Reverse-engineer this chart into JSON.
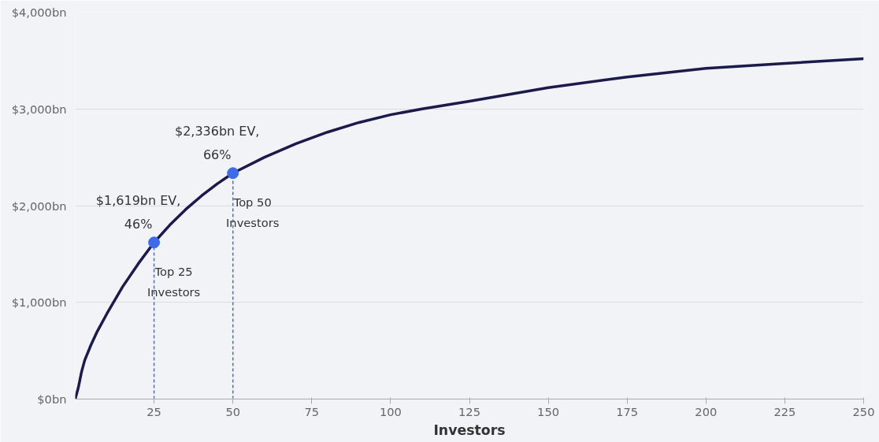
{
  "chart_data": {
    "type": "line",
    "xlabel": "Investors",
    "xlim": [
      0,
      250
    ],
    "xticks": [
      25,
      50,
      75,
      100,
      125,
      150,
      175,
      200,
      225,
      250
    ],
    "ylim": [
      0,
      4000
    ],
    "yticks": [
      {
        "value": 0,
        "label": "$0bn"
      },
      {
        "value": 1000,
        "label": "$1,000bn"
      },
      {
        "value": 2000,
        "label": "$2,000bn"
      },
      {
        "value": 3000,
        "label": "$3,000bn"
      },
      {
        "value": 4000,
        "label": "$4,000bn"
      }
    ],
    "grid": "y",
    "line_style": "solid",
    "series": [
      {
        "color": "#1b1a4b",
        "x": [
          0,
          1,
          2,
          3,
          5,
          7,
          10,
          15,
          20,
          25,
          30,
          35,
          40,
          45,
          50,
          60,
          70,
          80,
          90,
          100,
          110,
          125,
          150,
          175,
          200,
          225,
          250
        ],
        "values": [
          0,
          120,
          280,
          400,
          560,
          700,
          880,
          1160,
          1400,
          1619,
          1800,
          1960,
          2100,
          2225,
          2336,
          2500,
          2640,
          2760,
          2860,
          2940,
          3000,
          3080,
          3220,
          3330,
          3420,
          3470,
          3520
        ]
      },
      {
        "type": "scatter",
        "color": "#3f6ae8",
        "x": [
          25,
          50
        ],
        "values": [
          1619,
          2336
        ]
      }
    ],
    "ref_lines": [
      {
        "axis": "x",
        "value": 25,
        "color": "#3f6ae8",
        "line_style": "dashed"
      },
      {
        "axis": "x",
        "value": 50,
        "color": "#3f6ae8",
        "line_style": "dashed"
      }
    ],
    "annotations": [
      "$1,619bn EV,\n46%",
      "$2,336bn EV,\n66%",
      "Top 25\nInvestors",
      "Top 50\nInvestors"
    ]
  }
}
